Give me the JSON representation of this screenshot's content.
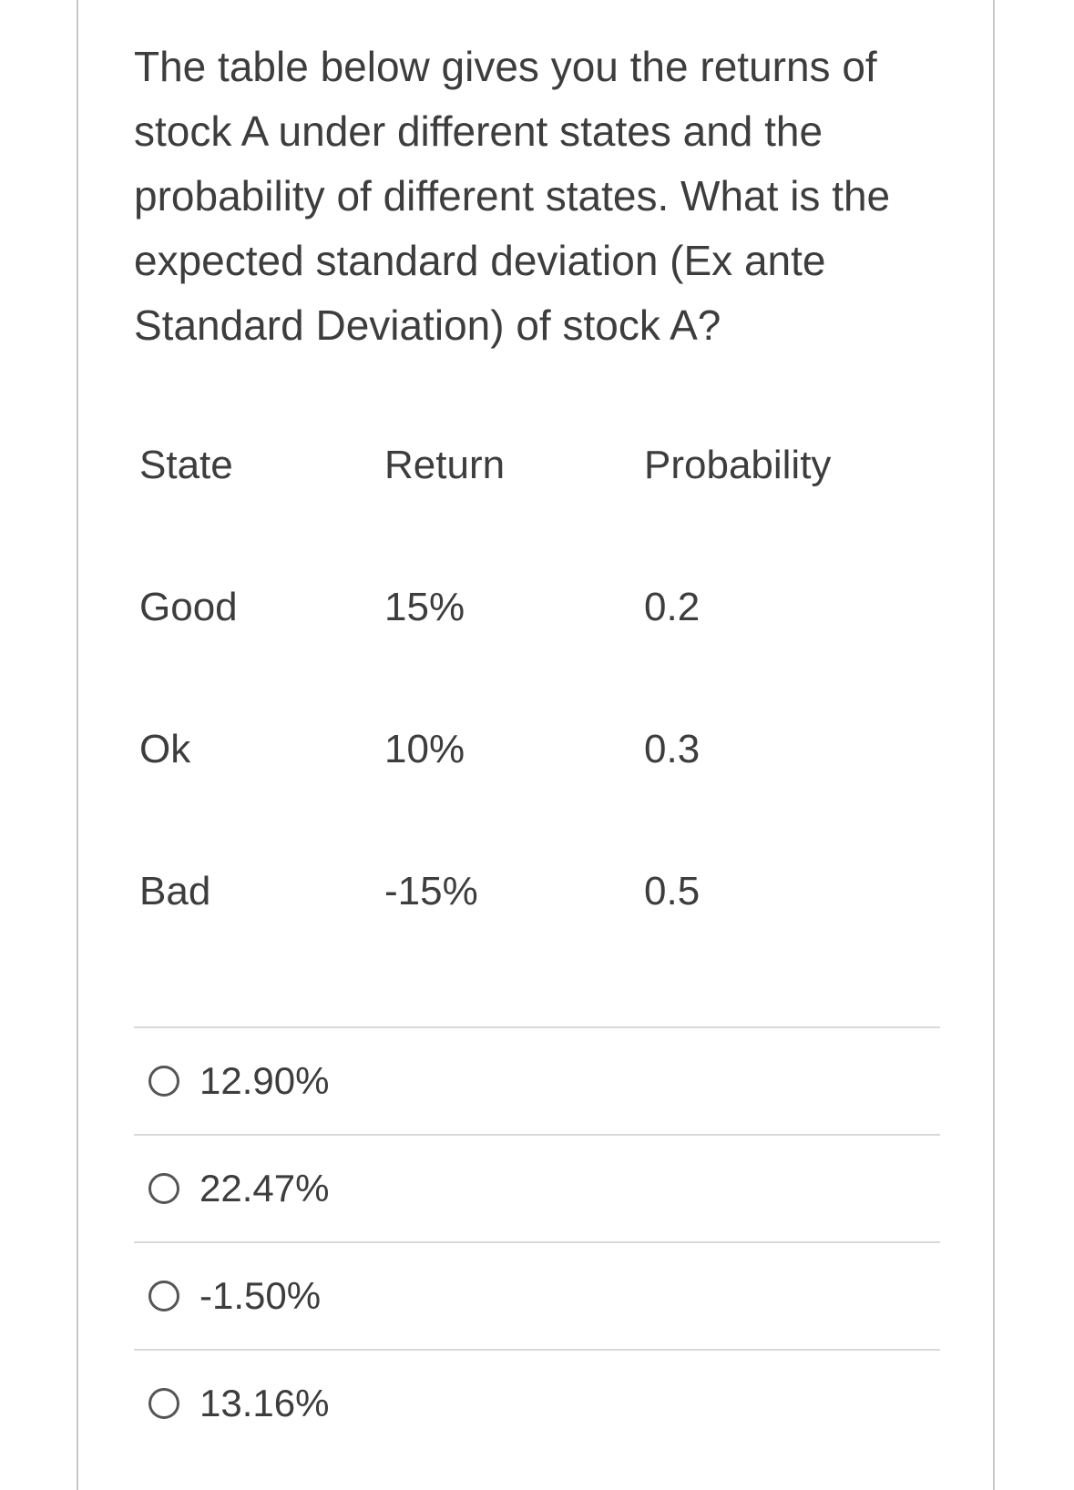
{
  "question": {
    "text": "The table below gives you the returns of stock A under different states and the probability of different states. What is the expected standard deviation (Ex ante Standard Deviation) of stock A?"
  },
  "table": {
    "headers": [
      "State",
      "Return",
      "Probability"
    ],
    "rows": [
      [
        "Good",
        "15%",
        "0.2"
      ],
      [
        "Ok",
        "10%",
        "0.3"
      ],
      [
        "Bad",
        "-15%",
        "0.5"
      ]
    ]
  },
  "options": [
    {
      "label": "12.90%"
    },
    {
      "label": "22.47%"
    },
    {
      "label": "-1.50%"
    },
    {
      "label": "13.16%"
    }
  ]
}
